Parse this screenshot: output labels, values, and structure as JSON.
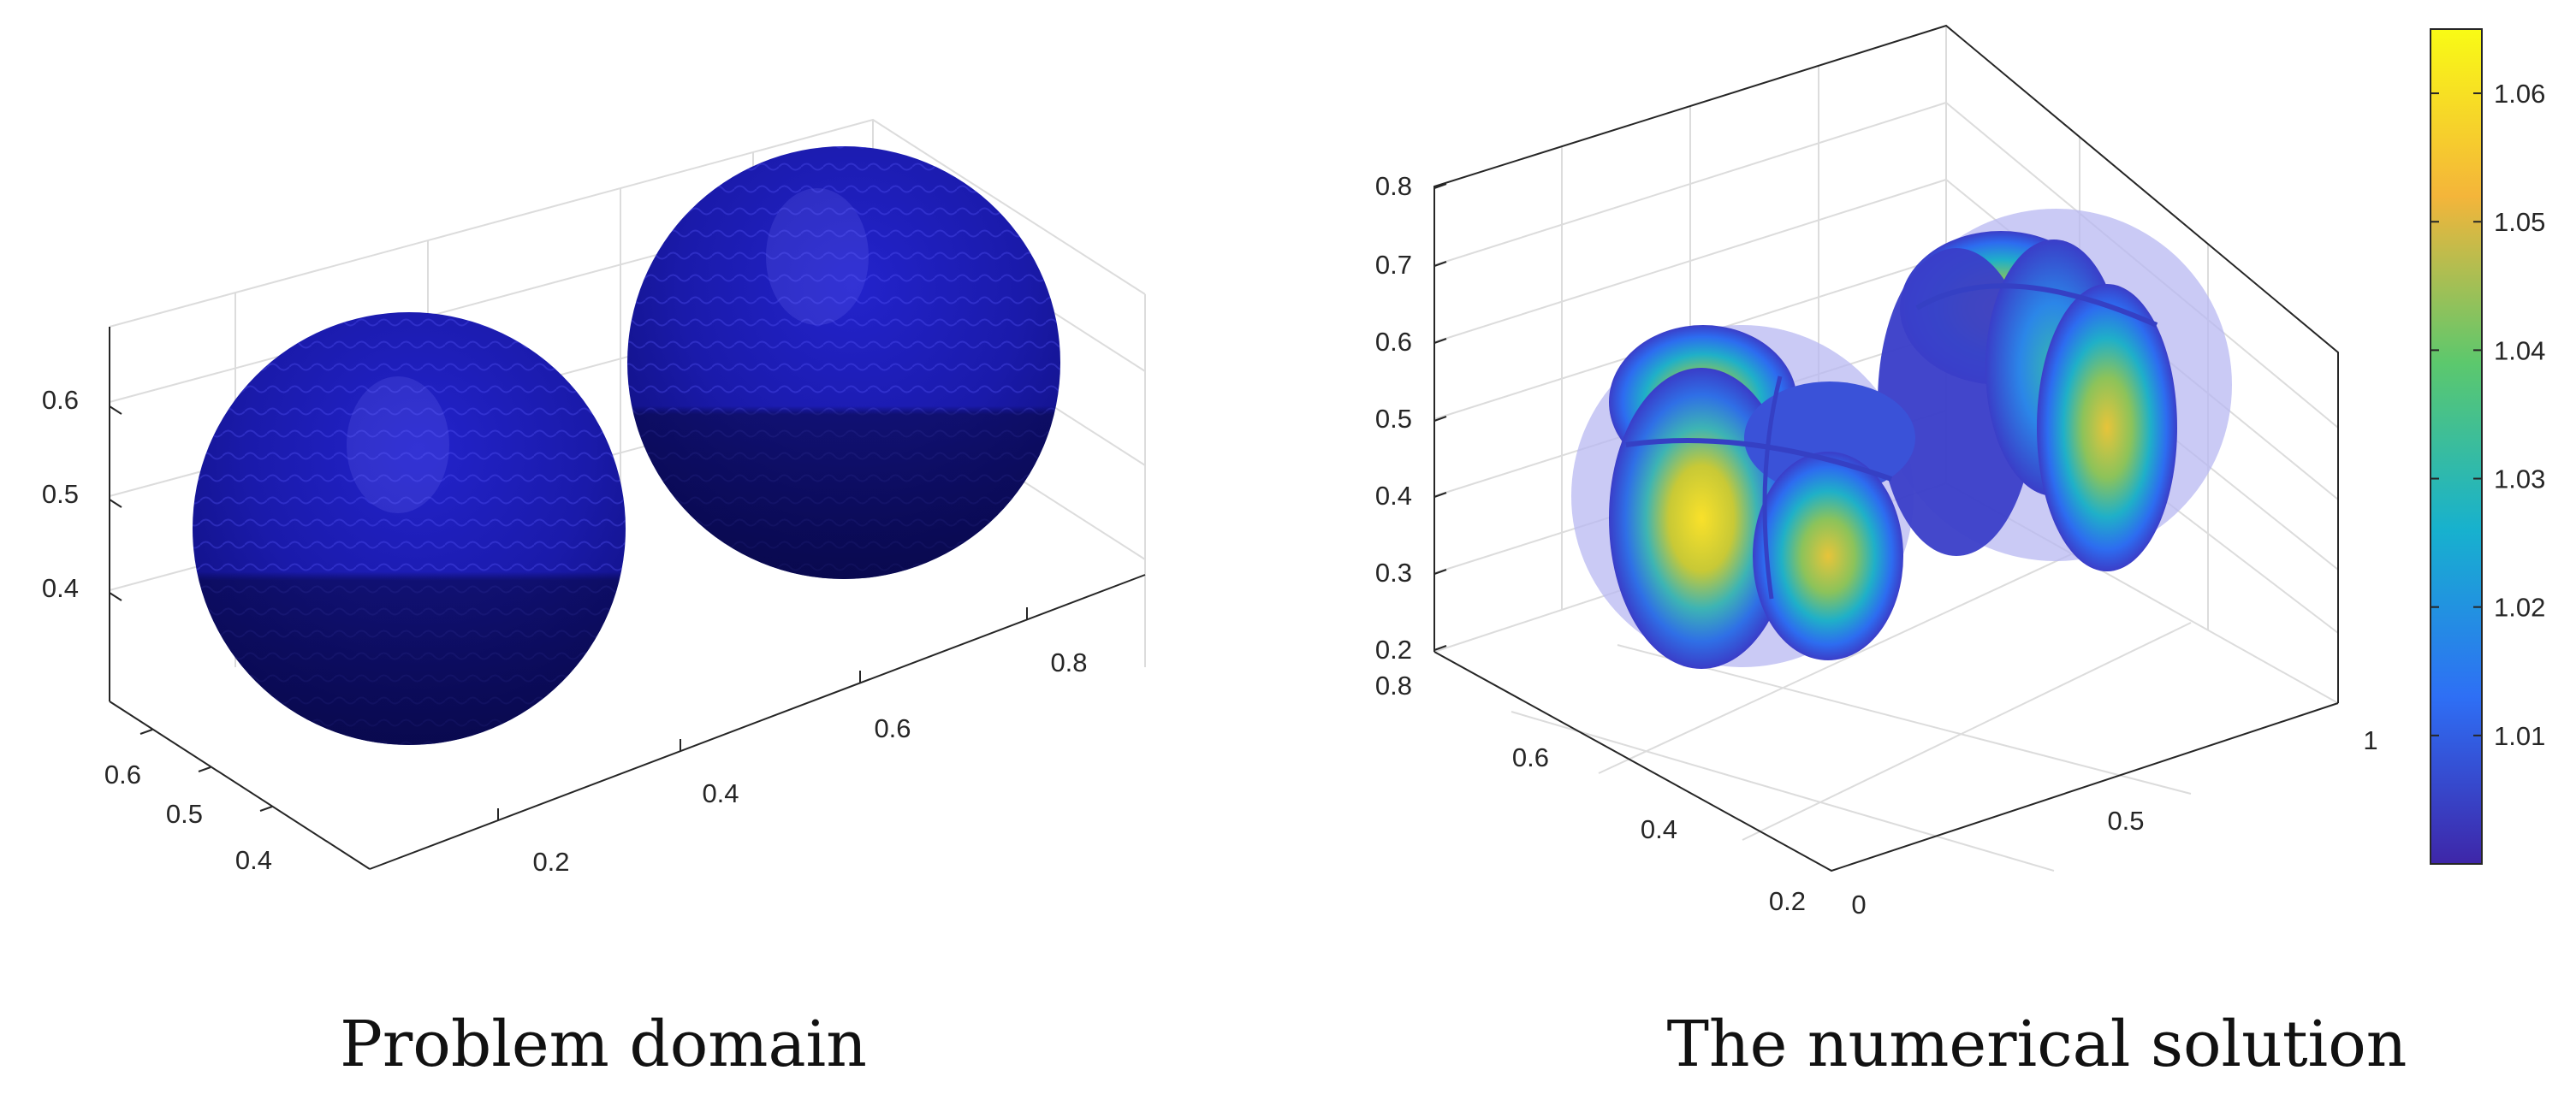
{
  "chart_data": [
    {
      "type": "surface3d",
      "title": "",
      "caption": "Problem domain",
      "axes": {
        "x": {
          "ticks": [
            "0.2",
            "0.4",
            "0.6",
            "0.8"
          ]
        },
        "y": {
          "ticks": [
            "0.4",
            "0.5",
            "0.6"
          ]
        },
        "z": {
          "ticks": [
            "0.4",
            "0.5",
            "0.6"
          ]
        }
      },
      "grid": true,
      "surface_color": "#1f1fb3",
      "objects": [
        {
          "shape": "sphere",
          "id": "front-sphere"
        },
        {
          "shape": "sphere",
          "id": "back-sphere"
        }
      ]
    },
    {
      "type": "surface3d",
      "title": "",
      "caption": "The numerical solution",
      "axes": {
        "x": {
          "ticks": [
            "0",
            "0.5",
            "1"
          ]
        },
        "y": {
          "ticks": [
            "0.2",
            "0.4",
            "0.6",
            "0.8"
          ]
        },
        "z": {
          "ticks": [
            "0.2",
            "0.3",
            "0.4",
            "0.5",
            "0.6",
            "0.7",
            "0.8"
          ]
        }
      },
      "grid": true,
      "colorbar": {
        "colormap": "parula",
        "range": [
          1.0,
          1.065
        ],
        "ticks": [
          "1.01",
          "1.02",
          "1.03",
          "1.04",
          "1.05",
          "1.06"
        ],
        "tick_values": [
          1.01,
          1.02,
          1.03,
          1.04,
          1.05,
          1.06
        ],
        "colors": [
          "#3e26a8",
          "#2e6ff5",
          "#17b1ce",
          "#5cc86d",
          "#f4b53a",
          "#f9fb15"
        ]
      }
    }
  ]
}
